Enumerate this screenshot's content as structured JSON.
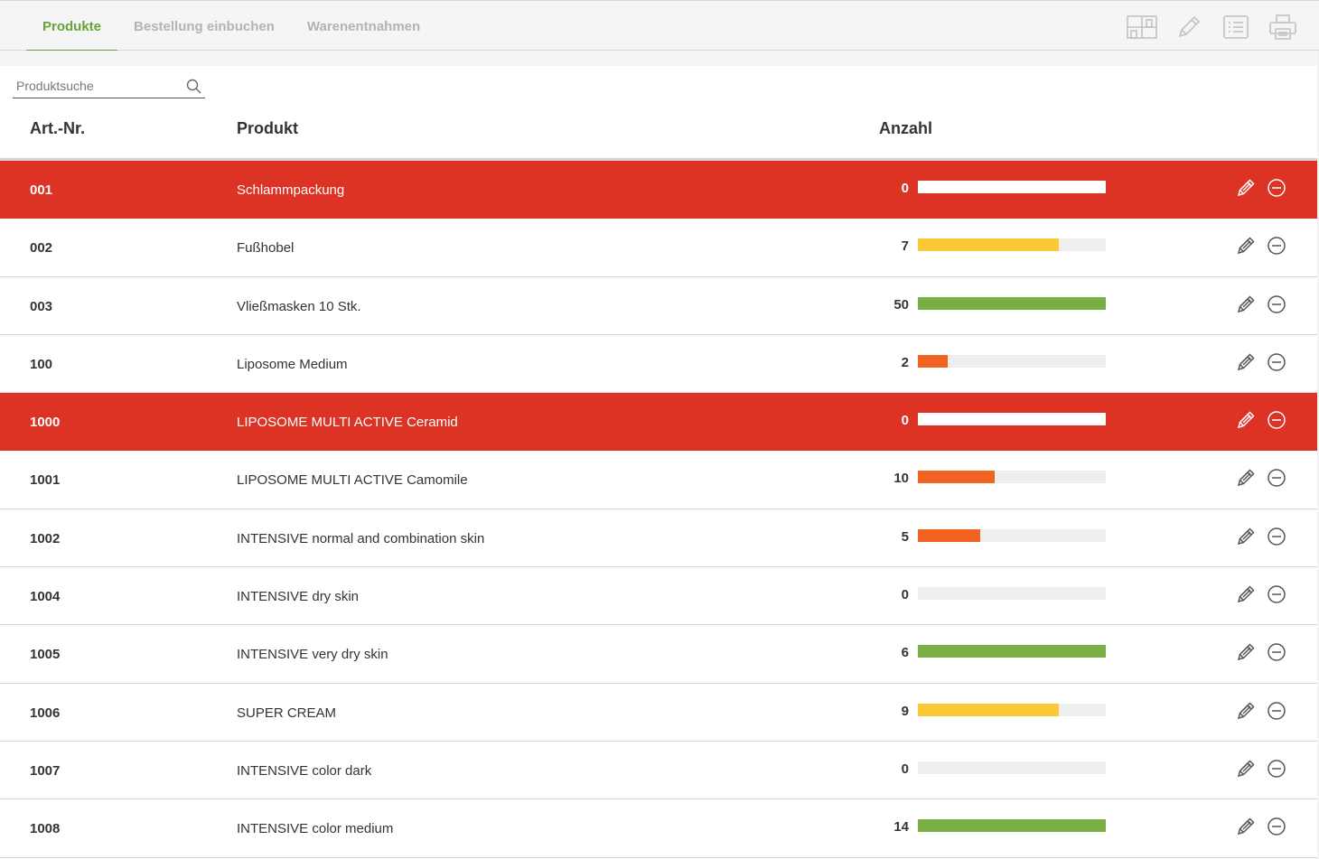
{
  "nav": {
    "tabs": [
      {
        "label": "Produkte",
        "active": true
      },
      {
        "label": "Bestellung einbuchen",
        "active": false
      },
      {
        "label": "Warenentnahmen",
        "active": false
      }
    ],
    "tools": [
      "shelf-icon",
      "pencil-icon",
      "list-icon",
      "printer-icon"
    ]
  },
  "search": {
    "placeholder": "Produktsuche"
  },
  "table": {
    "headers": {
      "art": "Art.-Nr.",
      "product": "Produkt",
      "qty": "Anzahl"
    },
    "rows": [
      {
        "art": "001",
        "product": "Schlammpackung",
        "qty": "0",
        "level": 1.0,
        "bar_color": "#ffffff",
        "alert": true
      },
      {
        "art": "002",
        "product": "Fußhobel",
        "qty": "7",
        "level": 0.75,
        "bar_color": "#fbc936",
        "alert": false
      },
      {
        "art": "003",
        "product": "Vließmasken 10 Stk.",
        "qty": "50",
        "level": 1.0,
        "bar_color": "#7aaf45",
        "alert": false
      },
      {
        "art": "100",
        "product": "Liposome Medium",
        "qty": "2",
        "level": 0.16,
        "bar_color": "#f26322",
        "alert": false
      },
      {
        "art": "1000",
        "product": "LIPOSOME MULTI ACTIVE Ceramid",
        "qty": "0",
        "level": 1.0,
        "bar_color": "#ffffff",
        "alert": true
      },
      {
        "art": "1001",
        "product": "LIPOSOME MULTI ACTIVE Camomile",
        "qty": "10",
        "level": 0.41,
        "bar_color": "#f26322",
        "alert": false
      },
      {
        "art": "1002",
        "product": "INTENSIVE normal and combination skin",
        "qty": "5",
        "level": 0.33,
        "bar_color": "#f26322",
        "alert": false
      },
      {
        "art": "1004",
        "product": "INTENSIVE dry skin",
        "qty": "0",
        "level": 0.0,
        "bar_color": "#eeeeee",
        "alert": false
      },
      {
        "art": "1005",
        "product": "INTENSIVE very dry skin",
        "qty": "6",
        "level": 1.0,
        "bar_color": "#7aaf45",
        "alert": false
      },
      {
        "art": "1006",
        "product": "SUPER CREAM",
        "qty": "9",
        "level": 0.75,
        "bar_color": "#fbc936",
        "alert": false
      },
      {
        "art": "1007",
        "product": "INTENSIVE color dark",
        "qty": "0",
        "level": 0.0,
        "bar_color": "#eeeeee",
        "alert": false
      },
      {
        "art": "1008",
        "product": "INTENSIVE color medium",
        "qty": "14",
        "level": 1.0,
        "bar_color": "#7aaf45",
        "alert": false
      }
    ]
  },
  "colors": {
    "accent": "#6aa13a",
    "alert": "#dc3325"
  }
}
